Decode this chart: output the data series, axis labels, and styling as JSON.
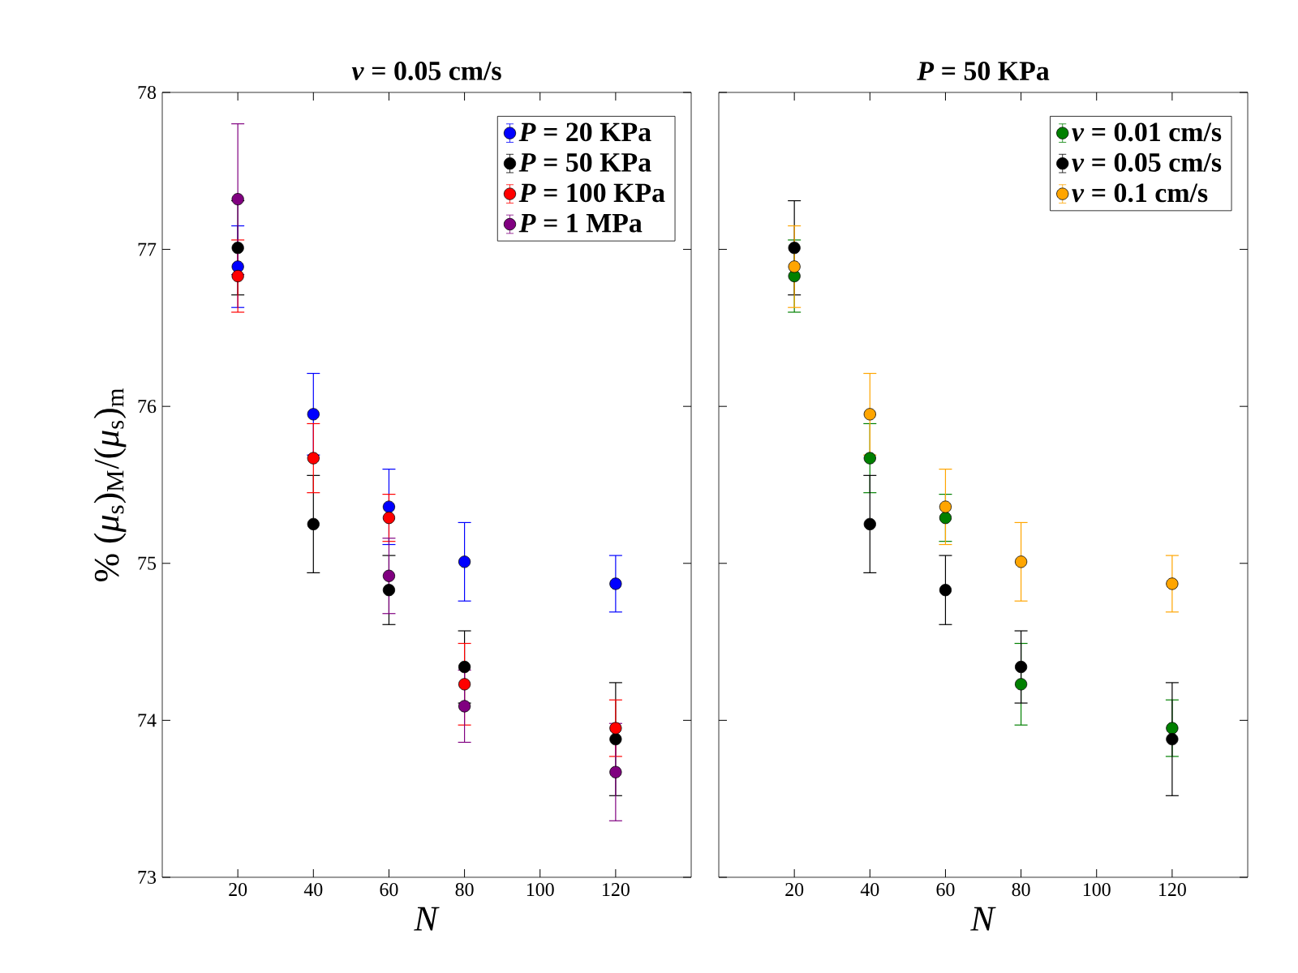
{
  "chart_data": [
    {
      "type": "scatter",
      "title": "*v* = 0.05 cm/s",
      "xlabel": "*N*",
      "ylabel": "% (*μ*$_{s}$)$_{M}$/(*μ*$_{s}$)$_{m}$",
      "x": [
        20,
        40,
        60,
        80,
        120
      ],
      "xlim": [
        0,
        140
      ],
      "xticks": [
        20,
        40,
        60,
        80,
        100,
        120
      ],
      "ylim": [
        73,
        78
      ],
      "yticks": [
        73,
        74,
        75,
        76,
        77,
        78
      ],
      "marker": "circle",
      "legend": "top right",
      "series": [
        {
          "name": "*P* = 20 KPa",
          "color": "#0000ff",
          "values": [
            76.89,
            75.95,
            75.36,
            75.01,
            74.87
          ],
          "errors": [
            0.26,
            0.26,
            0.24,
            0.25,
            0.18
          ]
        },
        {
          "name": "*P* = 50 KPa",
          "color": "#000000",
          "values": [
            77.01,
            75.25,
            74.83,
            74.34,
            73.88
          ],
          "errors": [
            0.3,
            0.31,
            0.22,
            0.23,
            0.36
          ]
        },
        {
          "name": "*P* = 100 KPa",
          "color": "#ff0000",
          "values": [
            76.83,
            75.67,
            75.29,
            74.23,
            73.95
          ],
          "errors": [
            0.23,
            0.22,
            0.15,
            0.26,
            0.18
          ]
        },
        {
          "name": "*P* = 1 MPa",
          "color": "#800080",
          "values": [
            77.32,
            null,
            74.92,
            74.09,
            73.67
          ],
          "errors": [
            0.48,
            null,
            0.24,
            0.23,
            0.31
          ]
        }
      ]
    },
    {
      "type": "scatter",
      "title": "*P* = 50 KPa",
      "xlabel": "*N*",
      "x": [
        20,
        40,
        60,
        80,
        120
      ],
      "xlim": [
        0,
        140
      ],
      "xticks": [
        20,
        40,
        60,
        80,
        100,
        120
      ],
      "ylim": [
        73,
        78
      ],
      "yticks": [
        73,
        74,
        75,
        76,
        77,
        78
      ],
      "tick_labels": "x",
      "marker": "circle",
      "legend": "top right",
      "series": [
        {
          "name": "*v* = 0.01 cm/s",
          "color": "#008000",
          "values": [
            76.83,
            75.67,
            75.29,
            74.23,
            73.95
          ],
          "errors": [
            0.23,
            0.22,
            0.15,
            0.26,
            0.18
          ]
        },
        {
          "name": "*v* = 0.05 cm/s",
          "color": "#000000",
          "values": [
            77.01,
            75.25,
            74.83,
            74.34,
            73.88
          ],
          "errors": [
            0.3,
            0.31,
            0.22,
            0.23,
            0.36
          ]
        },
        {
          "name": "*v* = 0.1 cm/s",
          "color": "#ffa500",
          "values": [
            76.89,
            75.95,
            75.36,
            75.01,
            74.87
          ],
          "errors": [
            0.26,
            0.26,
            0.24,
            0.25,
            0.18
          ]
        }
      ]
    }
  ]
}
